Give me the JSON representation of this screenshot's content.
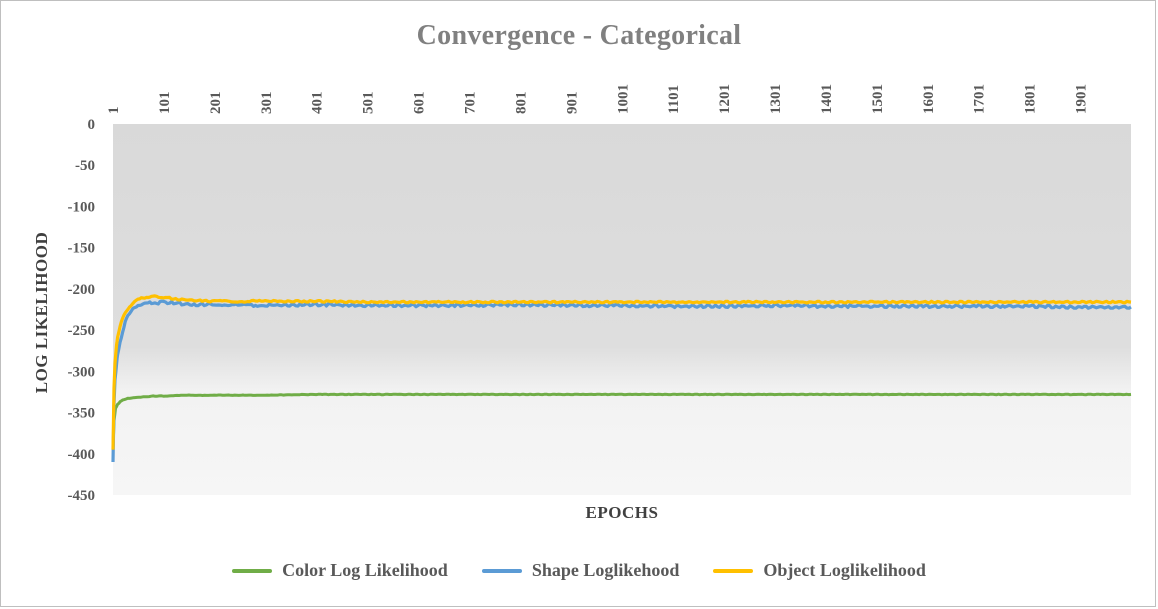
{
  "chart_data": {
    "type": "line",
    "title": "Convergence  - Categorical",
    "xlabel": "EPOCHS",
    "ylabel": "LOG LIKELIHOOD",
    "x_tick_labels": [
      "1",
      "101",
      "201",
      "301",
      "401",
      "501",
      "601",
      "701",
      "801",
      "901",
      "1001",
      "1101",
      "1201",
      "1301",
      "1401",
      "1501",
      "1601",
      "1701",
      "1801",
      "1901"
    ],
    "x_tick_values": [
      1,
      101,
      201,
      301,
      401,
      501,
      601,
      701,
      801,
      901,
      1001,
      1101,
      1201,
      1301,
      1401,
      1501,
      1601,
      1701,
      1801,
      1901
    ],
    "xlim": [
      1,
      2000
    ],
    "x_axis_position": "top",
    "y_tick_labels": [
      "0",
      "-50",
      "-100",
      "-150",
      "-200",
      "-250",
      "-300",
      "-350",
      "-400",
      "-450"
    ],
    "y_tick_values": [
      0,
      -50,
      -100,
      -150,
      -200,
      -250,
      -300,
      -350,
      -400,
      -450
    ],
    "ylim": [
      -450,
      0
    ],
    "grid": false,
    "legend_position": "bottom",
    "series": [
      {
        "name": "Color Log Likelihood",
        "color": "#70ad47",
        "x": [
          1,
          3,
          6,
          10,
          15,
          20,
          30,
          40,
          60,
          80,
          100,
          150,
          200,
          300,
          400,
          500,
          700,
          1000,
          1300,
          1600,
          2000
        ],
        "y": [
          -395,
          -360,
          -345,
          -340,
          -337,
          -335,
          -333,
          -332,
          -331,
          -330,
          -330,
          -329,
          -329,
          -329,
          -328,
          -328,
          -328,
          -328,
          -328,
          -328,
          -328
        ]
      },
      {
        "name": "Shape Loglikehood",
        "color": "#5b9bd5",
        "x": [
          1,
          3,
          5,
          8,
          10,
          15,
          20,
          25,
          30,
          40,
          50,
          60,
          70,
          80,
          90,
          100,
          120,
          140,
          160,
          200,
          250,
          300,
          400,
          500,
          600,
          700,
          800,
          900,
          1000,
          1100,
          1200,
          1300,
          1400,
          1500,
          1600,
          1700,
          1800,
          1900,
          2000
        ],
        "y": [
          -410,
          -340,
          -310,
          -290,
          -280,
          -265,
          -252,
          -240,
          -233,
          -225,
          -220,
          -219,
          -218,
          -216,
          -217,
          -216,
          -217,
          -218,
          -219,
          -219,
          -220,
          -220,
          -219,
          -220,
          -220,
          -220,
          -219,
          -220,
          -220,
          -221,
          -221,
          -220,
          -221,
          -221,
          -221,
          -221,
          -221,
          -222,
          -222
        ]
      },
      {
        "name": "Object Loglikelihood",
        "color": "#ffc000",
        "x": [
          1,
          3,
          5,
          8,
          10,
          15,
          20,
          25,
          30,
          40,
          50,
          60,
          70,
          80,
          90,
          100,
          120,
          140,
          160,
          200,
          250,
          300,
          400,
          500,
          600,
          700,
          800,
          900,
          1000,
          1100,
          1200,
          1300,
          1400,
          1500,
          1600,
          1700,
          1800,
          1900,
          2000
        ],
        "y": [
          -395,
          -320,
          -290,
          -268,
          -258,
          -245,
          -236,
          -229,
          -224,
          -217,
          -213,
          -211,
          -210,
          -209,
          -210,
          -210,
          -212,
          -213,
          -214,
          -215,
          -215,
          -215,
          -215,
          -216,
          -216,
          -216,
          -216,
          -216,
          -216,
          -216,
          -216,
          -216,
          -216,
          -216,
          -216,
          -216,
          -216,
          -216,
          -216
        ]
      }
    ]
  }
}
